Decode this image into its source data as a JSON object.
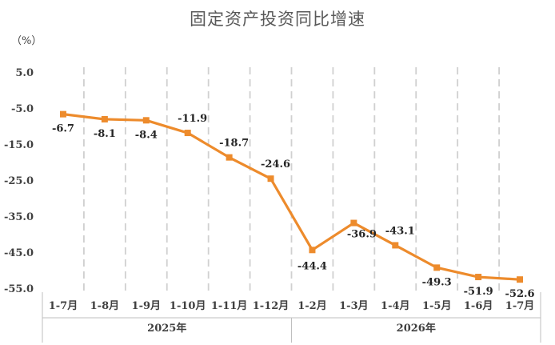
{
  "chart_data": {
    "type": "line",
    "title": "固定资产投资同比增速",
    "ylabel": "（%）",
    "categories": [
      "1-7月",
      "1-8月",
      "1-9月",
      "1-10月",
      "1-11月",
      "1-12月",
      "1-2月",
      "1-3月",
      "1-4月",
      "1-5月",
      "1-6月",
      "1-7月"
    ],
    "groups": [
      {
        "label": "2025年",
        "count": 6
      },
      {
        "label": "2026年",
        "count": 6
      }
    ],
    "yticks": [
      "5.0",
      "-5.0",
      "-15.0",
      "-25.0",
      "-35.0",
      "-45.0",
      "-55.0"
    ],
    "ylim": [
      -55,
      5
    ],
    "values": [
      -6.7,
      -8.1,
      -8.4,
      -11.9,
      -18.7,
      -24.6,
      -44.4,
      -36.9,
      -43.1,
      -49.3,
      -51.9,
      -52.6
    ],
    "data_labels": [
      "-6.7",
      "-8.1",
      "-8.4",
      "-11.9",
      "-18.7",
      "-24.6",
      "-44.4",
      "-36.9",
      "-43.1",
      "-49.3",
      "-51.9",
      "-52.6"
    ],
    "series_color": "#ED8B2C",
    "grid": "vertical-dashed",
    "legend": "none"
  }
}
